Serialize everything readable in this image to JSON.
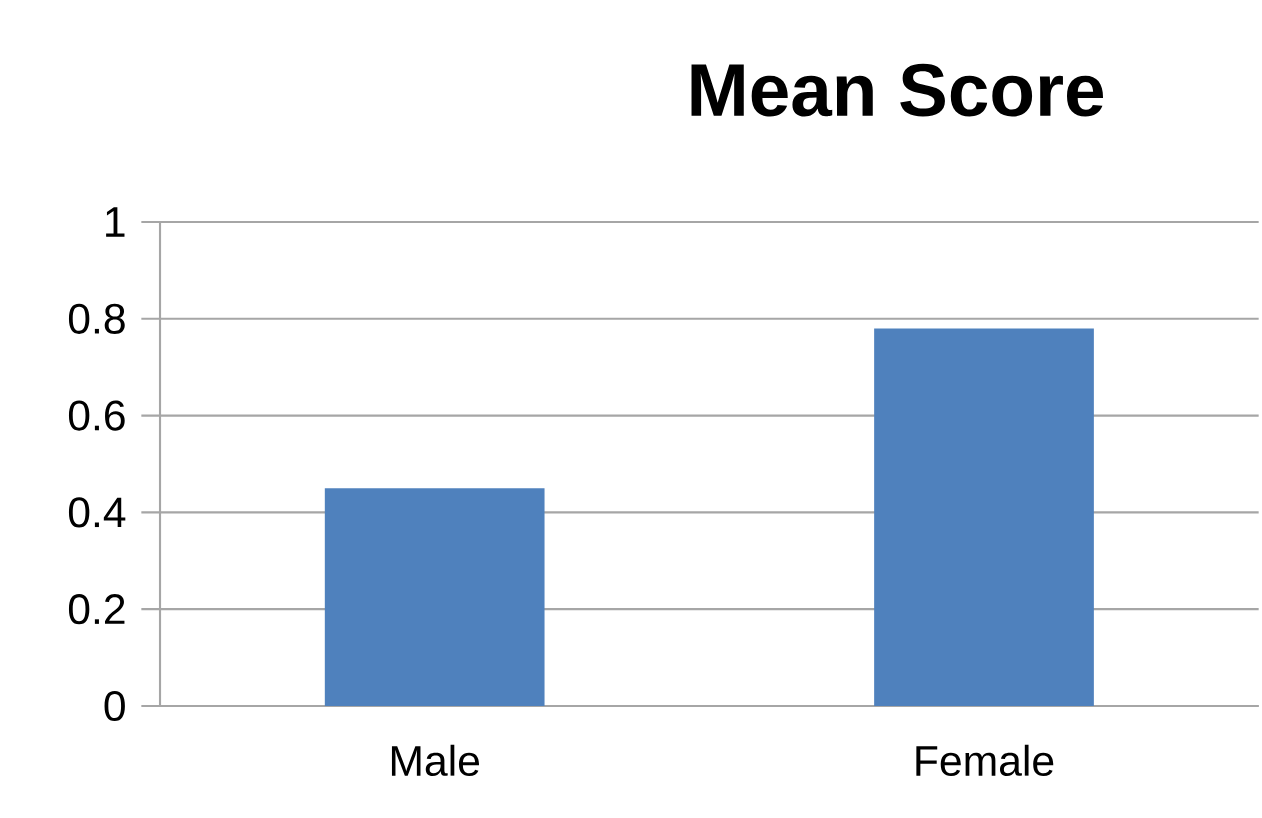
{
  "chart_data": {
    "type": "bar",
    "title": "Mean Score",
    "categories": [
      "Male",
      "Female"
    ],
    "values": [
      0.45,
      0.78
    ],
    "color": "#4f81bd",
    "ylim": [
      0,
      1
    ],
    "yticks": [
      0,
      0.2,
      0.4,
      0.6,
      0.8,
      1
    ],
    "grid": "y"
  }
}
